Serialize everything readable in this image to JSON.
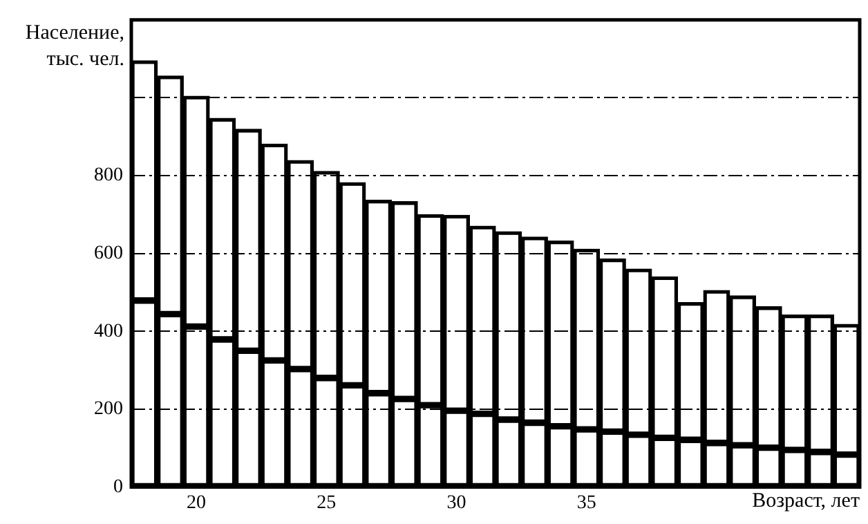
{
  "chart_data": {
    "type": "bar",
    "ylabel": "Население, тыс. чел.",
    "xlabel": "Возраст, лет",
    "categories": [
      null,
      null,
      "20",
      null,
      null,
      null,
      null,
      "25",
      null,
      null,
      null,
      null,
      "30",
      null,
      null,
      null,
      null,
      "35",
      null,
      null,
      null,
      null,
      null,
      null,
      null,
      null,
      null,
      null
    ],
    "series": [
      {
        "color": "#000000",
        "values": [
          479,
          444,
          412,
          379,
          350,
          325,
          303,
          280,
          261,
          241,
          226,
          210,
          196,
          188,
          173,
          165,
          156,
          148,
          142,
          134,
          126,
          121,
          113,
          107,
          101,
          95,
          90,
          83
        ]
      },
      {
        "color": "#000000",
        "values": [
          616,
          612,
          592,
          568,
          569,
          556,
          536,
          531,
          521,
          496,
          507,
          490,
          502,
          482,
          483,
          477,
          476,
          463,
          444,
          426,
          414,
          353,
          392,
          384,
          362,
          347,
          352,
          335
        ]
      }
    ],
    "stacked": true,
    "ylim": [
      0,
      1200
    ],
    "yticks": [
      0,
      200,
      400,
      600,
      800,
      {
        "value": 1000,
        "label": null
      }
    ],
    "grid": "y",
    "legend": false
  }
}
